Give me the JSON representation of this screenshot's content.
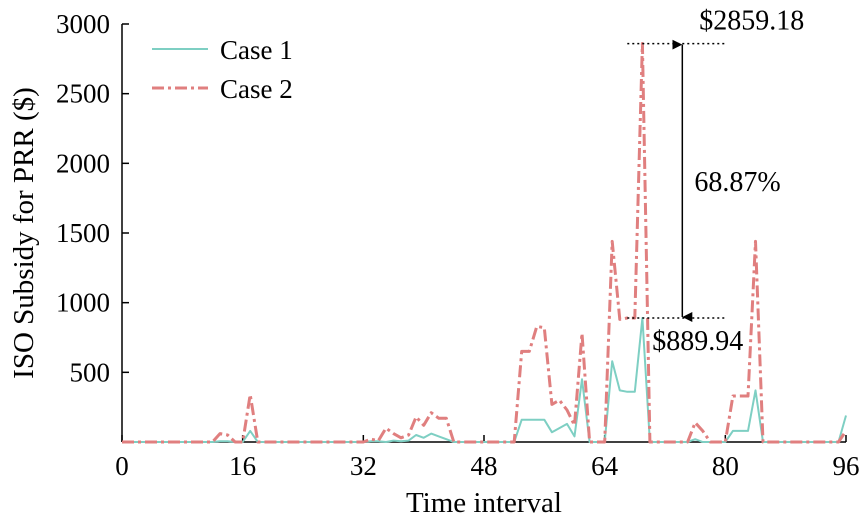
{
  "chart_data": {
    "type": "line",
    "xlabel": "Time interval",
    "ylabel": "ISO Subsidy for PRR ($)",
    "xlim": [
      0,
      96
    ],
    "ylim": [
      0,
      3000
    ],
    "xticks": [
      0,
      16,
      32,
      48,
      64,
      80,
      96
    ],
    "yticks": [
      500,
      1000,
      1500,
      2000,
      2500,
      3000
    ],
    "grid": false,
    "legend_position": "top-left",
    "series": [
      {
        "name": "Case 1",
        "color": "#7ecfc3",
        "style": "solid",
        "points": [
          [
            0,
            0
          ],
          [
            12,
            0
          ],
          [
            13,
            5
          ],
          [
            14,
            5
          ],
          [
            15,
            0
          ],
          [
            16,
            0
          ],
          [
            17,
            80
          ],
          [
            18,
            0
          ],
          [
            32,
            0
          ],
          [
            33,
            5
          ],
          [
            34,
            5
          ],
          [
            35,
            0
          ],
          [
            36,
            10
          ],
          [
            37,
            5
          ],
          [
            38,
            10
          ],
          [
            39,
            50
          ],
          [
            40,
            30
          ],
          [
            41,
            60
          ],
          [
            42,
            40
          ],
          [
            43,
            20
          ],
          [
            44,
            0
          ],
          [
            52,
            0
          ],
          [
            53,
            160
          ],
          [
            54,
            160
          ],
          [
            55,
            160
          ],
          [
            56,
            160
          ],
          [
            57,
            70
          ],
          [
            58,
            100
          ],
          [
            59,
            130
          ],
          [
            60,
            40
          ],
          [
            61,
            450
          ],
          [
            62,
            0
          ],
          [
            64,
            0
          ],
          [
            65,
            580
          ],
          [
            66,
            370
          ],
          [
            67,
            360
          ],
          [
            68,
            360
          ],
          [
            69,
            890
          ],
          [
            70,
            0
          ],
          [
            75,
            0
          ],
          [
            76,
            20
          ],
          [
            77,
            0
          ],
          [
            79,
            0
          ],
          [
            80,
            0
          ],
          [
            81,
            80
          ],
          [
            82,
            80
          ],
          [
            83,
            80
          ],
          [
            84,
            370
          ],
          [
            85,
            0
          ],
          [
            95,
            0
          ],
          [
            96,
            190
          ]
        ]
      },
      {
        "name": "Case 2",
        "color": "#e07f7f",
        "style": "dashdot",
        "points": [
          [
            0,
            0
          ],
          [
            12,
            0
          ],
          [
            13,
            60
          ],
          [
            14,
            50
          ],
          [
            15,
            0
          ],
          [
            16,
            0
          ],
          [
            17,
            340
          ],
          [
            18,
            0
          ],
          [
            32,
            0
          ],
          [
            33,
            20
          ],
          [
            34,
            10
          ],
          [
            35,
            100
          ],
          [
            36,
            60
          ],
          [
            37,
            30
          ],
          [
            38,
            50
          ],
          [
            39,
            180
          ],
          [
            40,
            120
          ],
          [
            41,
            210
          ],
          [
            42,
            170
          ],
          [
            43,
            170
          ],
          [
            44,
            0
          ],
          [
            52,
            0
          ],
          [
            53,
            650
          ],
          [
            54,
            650
          ],
          [
            55,
            830
          ],
          [
            56,
            820
          ],
          [
            57,
            270
          ],
          [
            58,
            300
          ],
          [
            59,
            230
          ],
          [
            60,
            120
          ],
          [
            61,
            780
          ],
          [
            62,
            0
          ],
          [
            64,
            0
          ],
          [
            65,
            1440
          ],
          [
            66,
            880
          ],
          [
            67,
            890
          ],
          [
            68,
            890
          ],
          [
            69,
            2860
          ],
          [
            70,
            0
          ],
          [
            75,
            0
          ],
          [
            76,
            140
          ],
          [
            77,
            80
          ],
          [
            78,
            0
          ],
          [
            80,
            0
          ],
          [
            81,
            330
          ],
          [
            82,
            330
          ],
          [
            83,
            330
          ],
          [
            84,
            1440
          ],
          [
            85,
            0
          ],
          [
            95,
            0
          ],
          [
            96,
            80
          ]
        ]
      }
    ],
    "annotations": {
      "high_value_label": "$2859.18",
      "high_value": 2859.18,
      "low_value_label": "$889.94",
      "low_value": 889.94,
      "diff_label": "68.87%",
      "ref_line_x_range": [
        67,
        80
      ]
    }
  }
}
